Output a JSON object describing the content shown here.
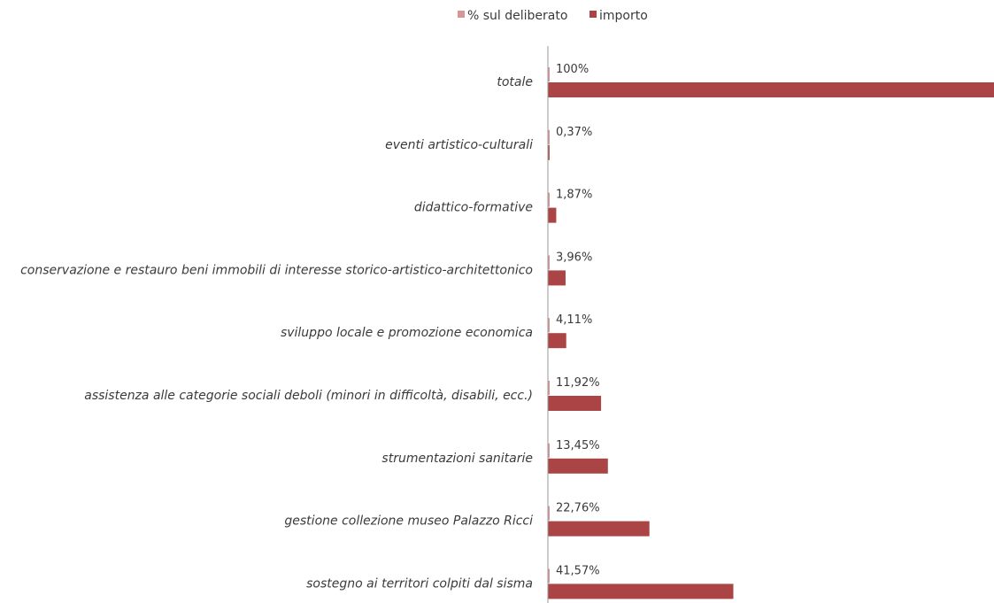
{
  "chart_data": {
    "type": "bar",
    "orientation": "horizontal",
    "categories": [
      "totale",
      "eventi artistico-culturali",
      "didattico-formative",
      "conservazione e restauro beni immobili di interesse storico-artistico-architettonico",
      "sviluppo locale e promozione economica",
      "assistenza alle categorie sociali deboli (minori in difficoltà, disabili, ecc.)",
      "strumentazioni sanitarie",
      "gestione collezione museo Palazzo Ricci",
      "sostegno ai territori colpiti dal sisma"
    ],
    "series": [
      {
        "name": "% sul deliberato",
        "color": "#d99594",
        "values": [
          1.0,
          0.0037,
          0.0187,
          0.0396,
          0.0411,
          0.1192,
          0.1345,
          0.2276,
          0.4157
        ],
        "labels": [
          "100%",
          "0,37%",
          "1,87%",
          "3,96%",
          "4,11%",
          "11,92%",
          "13,45%",
          "22,76%",
          "41,57%"
        ]
      },
      {
        "name": "importo",
        "color": "#ab4444",
        "values": [
          100,
          0.37,
          1.87,
          3.96,
          4.11,
          11.92,
          13.45,
          22.76,
          41.57
        ]
      }
    ],
    "title": "",
    "xlabel": "",
    "ylabel": "",
    "legend_position": "top-center",
    "grid": false
  }
}
